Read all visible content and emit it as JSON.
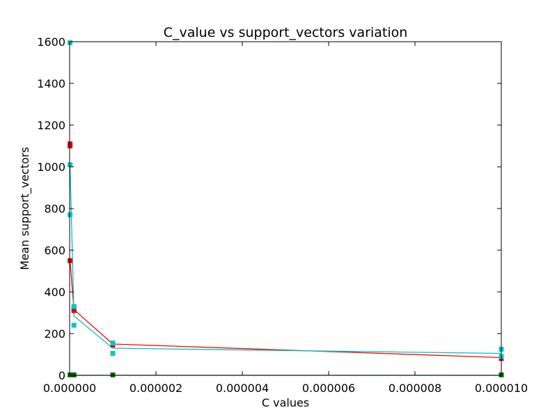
{
  "chart_data": {
    "type": "line",
    "title": "C_value vs support_vectors variation",
    "xlabel": "C values",
    "ylabel": "Mean support_vectors",
    "xlim": [
      0,
      1e-05
    ],
    "ylim": [
      0,
      1600
    ],
    "x_tick_labels": [
      "0.000000",
      "0.000002",
      "0.000004",
      "0.000006",
      "0.000008",
      "0.000010"
    ],
    "y_tick_labels": [
      "0",
      "200",
      "400",
      "600",
      "800",
      "1000",
      "1200",
      "1400",
      "1600"
    ],
    "x_ticks": [
      0,
      2e-06,
      4e-06,
      6e-06,
      8e-06,
      1e-05
    ],
    "y_ticks": [
      0,
      200,
      400,
      600,
      800,
      1000,
      1200,
      1400,
      1600
    ],
    "grid": false,
    "series": [
      {
        "color": "#ff0000",
        "marker_color": "#cc1010",
        "x": [
          1e-08,
          1e-07,
          1e-06,
          1e-05
        ],
        "y": [
          550,
          315,
          150,
          85
        ],
        "markers": [
          {
            "x": 1e-08,
            "y": 1110
          },
          {
            "x": 1e-08,
            "y": 1100
          },
          {
            "x": 1e-08,
            "y": 550
          },
          {
            "x": 1e-07,
            "y": 320
          },
          {
            "x": 1e-07,
            "y": 310
          },
          {
            "x": 1e-06,
            "y": 150
          },
          {
            "x": 1e-06,
            "y": 145
          },
          {
            "x": 1e-05,
            "y": 85
          },
          {
            "x": 1e-05,
            "y": 80
          }
        ]
      },
      {
        "color": "#00bfbf",
        "marker_color": "#00c8c8",
        "x": [
          1e-08,
          1e-07,
          1e-06,
          1e-05
        ],
        "y": [
          1010,
          285,
          130,
          105
        ],
        "markers": [
          {
            "x": 1e-08,
            "y": 1595
          },
          {
            "x": 1e-08,
            "y": 1010
          },
          {
            "x": 1e-08,
            "y": 770
          },
          {
            "x": 1e-07,
            "y": 330
          },
          {
            "x": 1e-07,
            "y": 240
          },
          {
            "x": 1e-06,
            "y": 155
          },
          {
            "x": 1e-06,
            "y": 105
          },
          {
            "x": 1e-05,
            "y": 125
          },
          {
            "x": 1e-05,
            "y": 90
          }
        ]
      },
      {
        "color": "#008000",
        "marker_color": "#006400",
        "x": [
          1e-08,
          1e-07,
          1e-06,
          1e-05
        ],
        "y": [
          0,
          0,
          0,
          0
        ],
        "markers": [
          {
            "x": 1e-08,
            "y": 2
          },
          {
            "x": 1e-07,
            "y": 2
          },
          {
            "x": 1e-06,
            "y": 2
          },
          {
            "x": 1e-05,
            "y": 2
          }
        ]
      }
    ]
  }
}
